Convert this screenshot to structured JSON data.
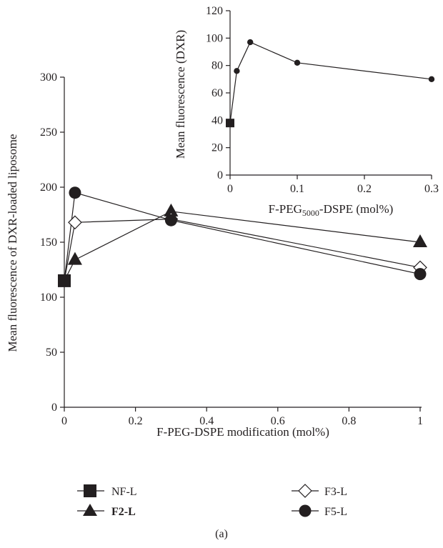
{
  "figure_caption": "(a)",
  "colors": {
    "ink": "#231f20",
    "open_marker_fill": "#ffffff"
  },
  "chart_data": [
    {
      "type": "line",
      "id": "main",
      "xlabel": "F-PEG-DSPE modification (mol%)",
      "ylabel": "Mean fluorescence of DXR-loaded liposome",
      "xlim": [
        0,
        1
      ],
      "ylim": [
        0,
        300
      ],
      "xticks": [
        0,
        0.2,
        0.4,
        0.6,
        0.8,
        1
      ],
      "xtick_labels": [
        "0",
        "0.2",
        "0.4",
        "0.6",
        "0.8",
        "1"
      ],
      "yticks": [
        0,
        50,
        100,
        150,
        200,
        250,
        300
      ],
      "ytick_labels": [
        "0",
        "50",
        "100",
        "150",
        "200",
        "250",
        "300"
      ],
      "grid": false,
      "legend_position": "bottom",
      "series": [
        {
          "name": "NF-L",
          "marker": "square-filled",
          "x": [
            0
          ],
          "y": [
            115
          ]
        },
        {
          "name": "F2-L",
          "marker": "triangle-filled",
          "bold_label": true,
          "x": [
            0,
            0.03,
            0.3,
            1
          ],
          "y": [
            115,
            134,
            178,
            150
          ]
        },
        {
          "name": "F3-L",
          "marker": "diamond-open",
          "x": [
            0,
            0.03,
            0.3,
            1
          ],
          "y": [
            115,
            168,
            171,
            127
          ]
        },
        {
          "name": "F5-L",
          "marker": "circle-filled",
          "x": [
            0,
            0.03,
            0.3,
            1
          ],
          "y": [
            115,
            195,
            170,
            121
          ]
        }
      ]
    },
    {
      "type": "line",
      "id": "inset",
      "xlabel_parts": [
        "F-PEG",
        "5000",
        "-DSPE (mol%)"
      ],
      "ylabel": "Mean fluorescence (DXR)",
      "xlim": [
        0,
        0.3
      ],
      "ylim": [
        0,
        120
      ],
      "xticks": [
        0,
        0.1,
        0.2,
        0.3
      ],
      "xtick_labels": [
        "0",
        "0.1",
        "0.2",
        "0.3"
      ],
      "yticks": [
        0,
        20,
        40,
        60,
        80,
        100,
        120
      ],
      "ytick_labels": [
        "0",
        "20",
        "40",
        "60",
        "80",
        "100",
        "120"
      ],
      "grid": false,
      "series": [
        {
          "marker": "circle-small",
          "x": [
            0,
            0.01,
            0.03,
            0.1,
            0.3
          ],
          "y": [
            38,
            76,
            97,
            82,
            70
          ]
        },
        {
          "marker": "square-filled",
          "x": [
            0
          ],
          "y": [
            38
          ]
        }
      ]
    }
  ]
}
